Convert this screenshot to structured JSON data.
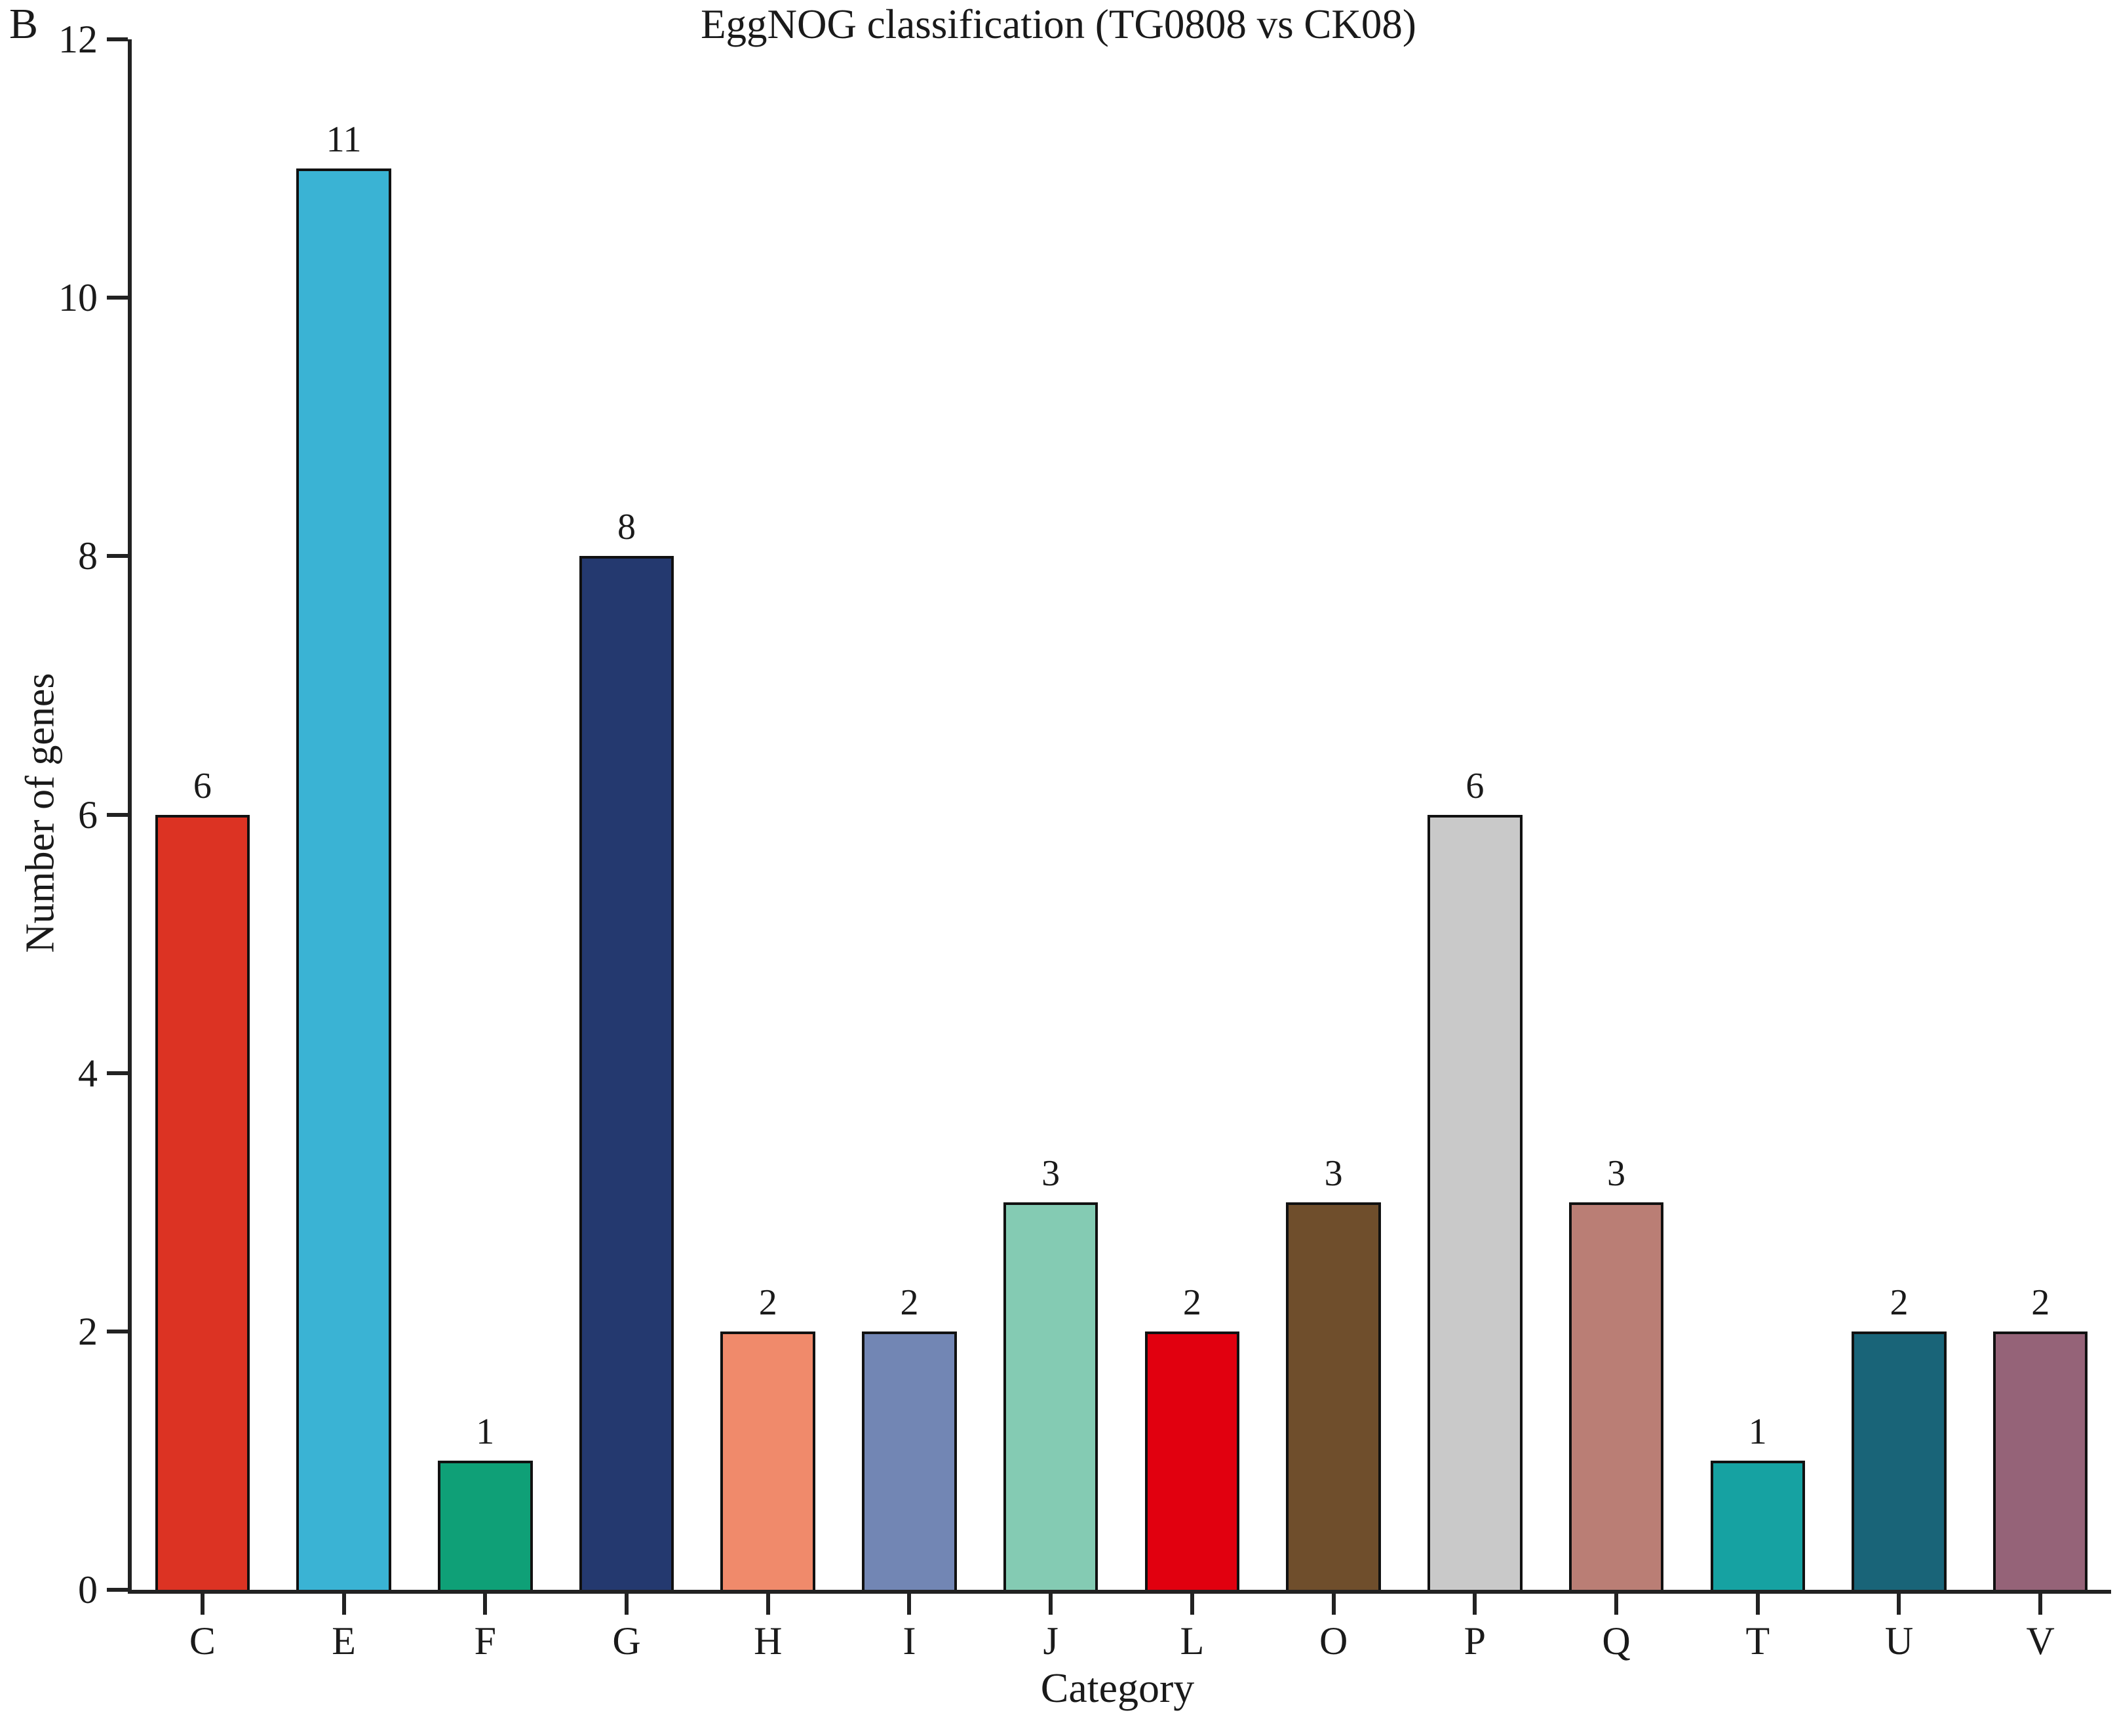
{
  "panel_label": "B",
  "chart_data": {
    "type": "bar",
    "title": "EggNOG classification (TG0808 vs CK08)",
    "xlabel": "Category",
    "ylabel": "Number of genes",
    "ylim": [
      0,
      12
    ],
    "yticks": [
      0,
      2,
      4,
      6,
      8,
      10,
      12
    ],
    "grid": false,
    "legend_position": "none",
    "value_labels_shown": true,
    "categories": [
      "C",
      "E",
      "F",
      "G",
      "H",
      "I",
      "J",
      "L",
      "O",
      "P",
      "Q",
      "T",
      "U",
      "V"
    ],
    "values": [
      6,
      11,
      1,
      8,
      2,
      2,
      3,
      2,
      3,
      6,
      3,
      1,
      2,
      2
    ],
    "bar_colors": [
      "#dc3323",
      "#3ab3d4",
      "#0fa077",
      "#24396f",
      "#f08a6b",
      "#7286b4",
      "#84cbb3",
      "#e1000f",
      "#6f4e2c",
      "#c9c9c9",
      "#ba7e75",
      "#16a2a2",
      "#196478",
      "#956378"
    ],
    "bar_edge_color": "#111111",
    "axis_color": "#222222",
    "text_color": "#1a1a1a"
  }
}
